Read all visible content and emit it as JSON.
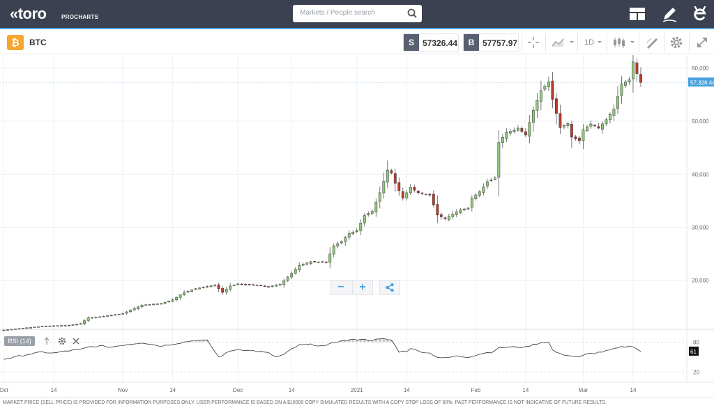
{
  "topbar": {
    "logo": "«toro",
    "logo_sub": "PROCHARTS",
    "search_placeholder": "Markets / People search",
    "icons": [
      "layout-icon",
      "pencil-icon",
      "etoro-e-icon"
    ]
  },
  "toolbar": {
    "symbol_badge": "₿",
    "symbol": "BTC",
    "sell_letter": "S",
    "sell_price": "57326.44",
    "buy_letter": "B",
    "buy_price": "57757.97",
    "interval": "1D",
    "icons": [
      "crosshair-icon",
      "chart-type-icon",
      "candlestick-icon",
      "draw-tools-icon",
      "gear-icon",
      "fullscreen-icon"
    ]
  },
  "colors": {
    "up": "#8fc97a",
    "down": "#c0392b",
    "accent": "#4aa3df",
    "topbar": "#3b4150"
  },
  "chart_data": {
    "type": "candlestick",
    "current_price_label": "57,326.44",
    "y_ticks": [
      "60,000",
      "50,000",
      "40,000",
      "30,000",
      "20,000"
    ],
    "y_tick_values": [
      60000,
      50000,
      40000,
      30000,
      20000
    ],
    "ylim": [
      11000,
      62500
    ],
    "x_ticks": [
      "Oct",
      "14",
      "Nov",
      "14",
      "Dec",
      "14",
      "2021",
      "14",
      "Feb",
      "14",
      "Mar",
      "14"
    ],
    "x_tick_days": [
      0,
      13,
      31,
      44,
      61,
      75,
      92,
      105,
      123,
      136,
      151,
      164
    ],
    "x_range_days": [
      -1,
      178
    ],
    "last_day": 166,
    "close_checkpoints": [
      [
        0,
        10600
      ],
      [
        10,
        11300
      ],
      [
        13,
        11400
      ],
      [
        17,
        11500
      ],
      [
        20,
        11800
      ],
      [
        22,
        12900
      ],
      [
        25,
        13100
      ],
      [
        31,
        13700
      ],
      [
        36,
        15300
      ],
      [
        41,
        15600
      ],
      [
        44,
        16300
      ],
      [
        47,
        17700
      ],
      [
        50,
        18400
      ],
      [
        55,
        19100
      ],
      [
        57,
        17700
      ],
      [
        59,
        18900
      ],
      [
        61,
        19300
      ],
      [
        63,
        19200
      ],
      [
        66,
        19100
      ],
      [
        69,
        18800
      ],
      [
        72,
        19200
      ],
      [
        75,
        21300
      ],
      [
        77,
        22800
      ],
      [
        80,
        23500
      ],
      [
        84,
        23400
      ],
      [
        86,
        26500
      ],
      [
        88,
        27300
      ],
      [
        90,
        28800
      ],
      [
        92,
        29400
      ],
      [
        94,
        32200
      ],
      [
        96,
        33000
      ],
      [
        98,
        36500
      ],
      [
        100,
        40800
      ],
      [
        101,
        40200
      ],
      [
        102,
        38300
      ],
      [
        104,
        35500
      ],
      [
        106,
        37500
      ],
      [
        108,
        36500
      ],
      [
        111,
        36100
      ],
      [
        113,
        32300
      ],
      [
        115,
        31600
      ],
      [
        117,
        32500
      ],
      [
        119,
        33300
      ],
      [
        121,
        33600
      ],
      [
        122,
        35500
      ],
      [
        124,
        36700
      ],
      [
        126,
        38600
      ],
      [
        128,
        39300
      ],
      [
        129,
        46000
      ],
      [
        131,
        47900
      ],
      [
        133,
        48300
      ],
      [
        134,
        48700
      ],
      [
        136,
        47400
      ],
      [
        138,
        52100
      ],
      [
        140,
        55800
      ],
      [
        142,
        57400
      ],
      [
        143,
        54100
      ],
      [
        145,
        48800
      ],
      [
        147,
        49600
      ],
      [
        148,
        47000
      ],
      [
        150,
        46300
      ],
      [
        151,
        48400
      ],
      [
        153,
        49500
      ],
      [
        155,
        48700
      ],
      [
        157,
        50300
      ],
      [
        159,
        52300
      ],
      [
        161,
        57000
      ],
      [
        163,
        57800
      ],
      [
        164,
        61200
      ],
      [
        165,
        59000
      ],
      [
        166,
        57326
      ]
    ],
    "rsi": {
      "label": "RSI (14)",
      "ticks": [
        "80",
        "20"
      ],
      "tick_values": [
        80,
        20
      ],
      "current_value": "61",
      "ylim": [
        0,
        100
      ],
      "checkpoints": [
        [
          0,
          46
        ],
        [
          6,
          55
        ],
        [
          10,
          60
        ],
        [
          13,
          58
        ],
        [
          16,
          62
        ],
        [
          20,
          65
        ],
        [
          22,
          70
        ],
        [
          25,
          72
        ],
        [
          28,
          70
        ],
        [
          31,
          74
        ],
        [
          36,
          79
        ],
        [
          41,
          72
        ],
        [
          44,
          76
        ],
        [
          47,
          80
        ],
        [
          50,
          84
        ],
        [
          53,
          83
        ],
        [
          56,
          50
        ],
        [
          59,
          62
        ],
        [
          61,
          66
        ],
        [
          63,
          64
        ],
        [
          66,
          62
        ],
        [
          69,
          58
        ],
        [
          71,
          50
        ],
        [
          73,
          55
        ],
        [
          75,
          66
        ],
        [
          77,
          74
        ],
        [
          80,
          75
        ],
        [
          84,
          72
        ],
        [
          86,
          80
        ],
        [
          88,
          82
        ],
        [
          90,
          84
        ],
        [
          93,
          86
        ],
        [
          95,
          84
        ],
        [
          97,
          85
        ],
        [
          99,
          86
        ],
        [
          101,
          84
        ],
        [
          103,
          61
        ],
        [
          105,
          62
        ],
        [
          106,
          68
        ],
        [
          108,
          62
        ],
        [
          111,
          58
        ],
        [
          113,
          50
        ],
        [
          115,
          48
        ],
        [
          118,
          52
        ],
        [
          121,
          50
        ],
        [
          123,
          54
        ],
        [
          125,
          58
        ],
        [
          127,
          60
        ],
        [
          129,
          68
        ],
        [
          131,
          70
        ],
        [
          133,
          70
        ],
        [
          136,
          70
        ],
        [
          138,
          75
        ],
        [
          140,
          79
        ],
        [
          142,
          80
        ],
        [
          143,
          64
        ],
        [
          145,
          56
        ],
        [
          147,
          54
        ],
        [
          148,
          52
        ],
        [
          150,
          50
        ],
        [
          152,
          56
        ],
        [
          154,
          58
        ],
        [
          157,
          62
        ],
        [
          159,
          66
        ],
        [
          161,
          70
        ],
        [
          164,
          72
        ],
        [
          166,
          61
        ]
      ]
    }
  },
  "zoom": {
    "minus": "−",
    "plus": "+"
  },
  "disclaimer": "MARKET PRICE (SELL PRICE) IS PROVIDED FOR INFORMATION PURPOSES ONLY. USER PERFORMANCE IS BASED ON A $10000 COPY SIMULATED RESULTS WITH A COPY STOP LOSS OF 60%. PAST PERFORMANCE IS NOT INDICATIVE OF FUTURE RESULTS."
}
